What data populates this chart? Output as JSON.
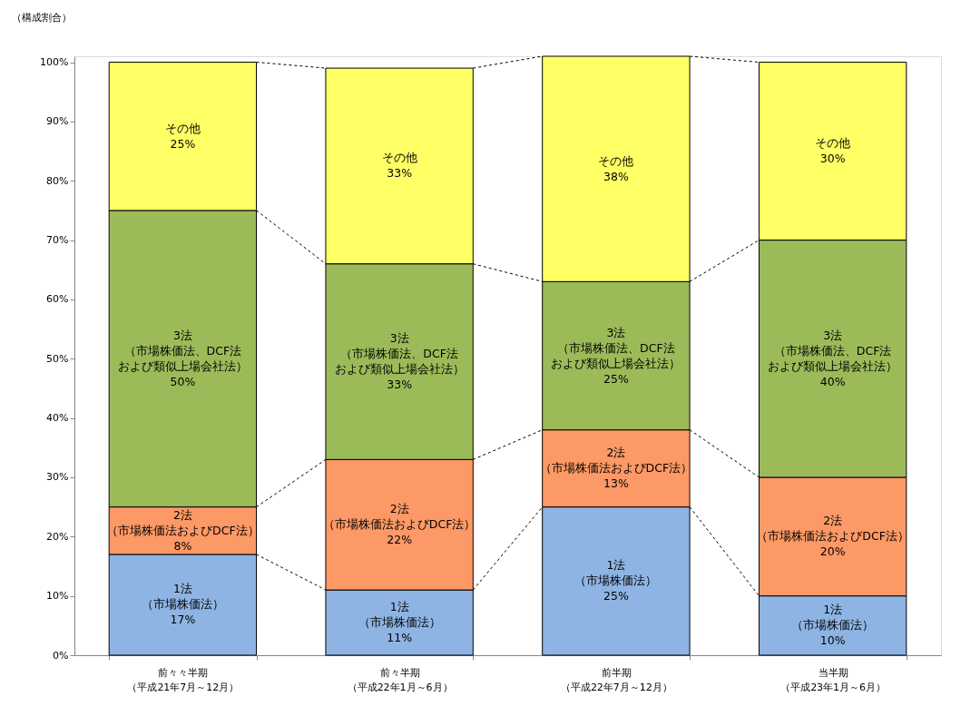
{
  "chart_data": {
    "type": "bar",
    "stacked": true,
    "ylabel": "（構成割合）",
    "categories": [
      "前々々半期（平成21年7月～12月）",
      "前々半期（平成22年1月～6月）",
      "前半期（平成22年7月～12月）",
      "当半期（平成23年1月～6月）"
    ],
    "series": [
      {
        "color": "#8eb4e3",
        "values": [
          17,
          11,
          25,
          10
        ],
        "value_labels": [
          "1法（市場株価法）17%",
          "1法（市場株価法）11%",
          "1法（市場株価法）25%",
          "1法（市場株価法）10%"
        ]
      },
      {
        "color": "#fd9966",
        "values": [
          8,
          22,
          13,
          20
        ],
        "value_labels": [
          "2法（市場株価法およびDCF法）8%",
          "2法（市場株価法およびDCF法）22%",
          "2法（市場株価法およびDCF法）13%",
          "2法（市場株価法およびDCF法）20%"
        ]
      },
      {
        "color": "#9bbb59",
        "values": [
          50,
          33,
          25,
          40
        ],
        "value_labels": [
          "3法（市場株価法、DCF法および類似上場会社法）50%",
          "3法（市場株価法、DCF法および類似上場会社法）33%",
          "3法（市場株価法、DCF法および類似上場会社法）25%",
          "3法（市場株価法、DCF法および類似上場会社法）40%"
        ]
      },
      {
        "color": "#ffff66",
        "values": [
          25,
          33,
          38,
          30
        ],
        "value_labels": [
          "その他25%",
          "その他33%",
          "その他38%",
          "その他30%"
        ]
      }
    ],
    "ylim": [
      0,
      101
    ],
    "yticks": [
      {
        "value": 0,
        "label": "0%"
      },
      {
        "value": 10,
        "label": "10%"
      },
      {
        "value": 20,
        "label": "20%"
      },
      {
        "value": 30,
        "label": "30%"
      },
      {
        "value": 40,
        "label": "40%"
      },
      {
        "value": 50,
        "label": "50%"
      },
      {
        "value": 60,
        "label": "60%"
      },
      {
        "value": 70,
        "label": "70%"
      },
      {
        "value": 80,
        "label": "80%"
      },
      {
        "value": 90,
        "label": "90%"
      },
      {
        "value": 100,
        "label": "100%"
      }
    ],
    "grid": false,
    "legend": false
  }
}
